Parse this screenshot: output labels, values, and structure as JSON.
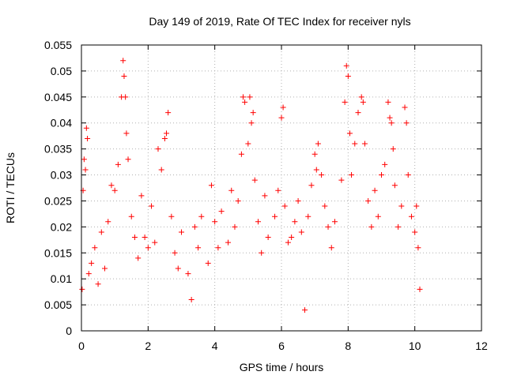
{
  "chart_data": {
    "type": "scatter",
    "title": "Day 149 of 2019, Rate Of TEC Index for receiver nyls",
    "xlabel": "GPS time / hours",
    "ylabel": "ROTI / TECUs",
    "xlim": [
      0,
      12
    ],
    "ylim": [
      0,
      0.055
    ],
    "xticks": [
      0,
      2,
      4,
      6,
      8,
      10,
      12
    ],
    "xtick_labels": [
      "0",
      "2",
      "4",
      "6",
      "8",
      "10",
      "12"
    ],
    "yticks": [
      0,
      0.005,
      0.01,
      0.015,
      0.02,
      0.025,
      0.03,
      0.035,
      0.04,
      0.045,
      0.05,
      0.055
    ],
    "ytick_labels": [
      "0",
      "0.005",
      "0.01",
      "0.015",
      "0.02",
      "0.025",
      "0.03",
      "0.035",
      "0.04",
      "0.045",
      "0.05",
      "0.055"
    ],
    "grid": true,
    "marker": "+",
    "marker_color": "#ff0000",
    "series": [
      {
        "name": "ROTI",
        "points": [
          [
            0.02,
            0.008
          ],
          [
            0.05,
            0.027
          ],
          [
            0.08,
            0.033
          ],
          [
            0.12,
            0.031
          ],
          [
            0.15,
            0.039
          ],
          [
            0.18,
            0.037
          ],
          [
            0.22,
            0.011
          ],
          [
            0.3,
            0.013
          ],
          [
            0.4,
            0.016
          ],
          [
            0.5,
            0.009
          ],
          [
            0.6,
            0.019
          ],
          [
            0.7,
            0.012
          ],
          [
            0.8,
            0.021
          ],
          [
            0.9,
            0.028
          ],
          [
            1.0,
            0.027
          ],
          [
            1.1,
            0.032
          ],
          [
            1.2,
            0.045
          ],
          [
            1.25,
            0.052
          ],
          [
            1.28,
            0.049
          ],
          [
            1.32,
            0.045
          ],
          [
            1.35,
            0.038
          ],
          [
            1.4,
            0.033
          ],
          [
            1.5,
            0.022
          ],
          [
            1.6,
            0.018
          ],
          [
            1.7,
            0.014
          ],
          [
            1.8,
            0.026
          ],
          [
            1.9,
            0.018
          ],
          [
            2.0,
            0.016
          ],
          [
            2.1,
            0.024
          ],
          [
            2.2,
            0.017
          ],
          [
            2.3,
            0.035
          ],
          [
            2.4,
            0.031
          ],
          [
            2.5,
            0.037
          ],
          [
            2.55,
            0.038
          ],
          [
            2.6,
            0.042
          ],
          [
            2.7,
            0.022
          ],
          [
            2.8,
            0.015
          ],
          [
            2.9,
            0.012
          ],
          [
            3.0,
            0.019
          ],
          [
            3.2,
            0.011
          ],
          [
            3.3,
            0.006
          ],
          [
            3.4,
            0.02
          ],
          [
            3.5,
            0.016
          ],
          [
            3.6,
            0.022
          ],
          [
            3.8,
            0.013
          ],
          [
            3.9,
            0.028
          ],
          [
            4.0,
            0.021
          ],
          [
            4.1,
            0.016
          ],
          [
            4.2,
            0.023
          ],
          [
            4.4,
            0.017
          ],
          [
            4.5,
            0.027
          ],
          [
            4.6,
            0.02
          ],
          [
            4.7,
            0.025
          ],
          [
            4.8,
            0.034
          ],
          [
            4.85,
            0.045
          ],
          [
            4.9,
            0.044
          ],
          [
            5.0,
            0.036
          ],
          [
            5.05,
            0.045
          ],
          [
            5.1,
            0.04
          ],
          [
            5.15,
            0.042
          ],
          [
            5.2,
            0.029
          ],
          [
            5.3,
            0.021
          ],
          [
            5.4,
            0.015
          ],
          [
            5.5,
            0.026
          ],
          [
            5.6,
            0.018
          ],
          [
            5.8,
            0.022
          ],
          [
            5.9,
            0.027
          ],
          [
            6.0,
            0.041
          ],
          [
            6.05,
            0.043
          ],
          [
            6.1,
            0.024
          ],
          [
            6.2,
            0.017
          ],
          [
            6.3,
            0.018
          ],
          [
            6.4,
            0.021
          ],
          [
            6.5,
            0.025
          ],
          [
            6.6,
            0.019
          ],
          [
            6.7,
            0.004
          ],
          [
            6.8,
            0.022
          ],
          [
            6.9,
            0.028
          ],
          [
            7.0,
            0.034
          ],
          [
            7.05,
            0.031
          ],
          [
            7.1,
            0.036
          ],
          [
            7.2,
            0.03
          ],
          [
            7.3,
            0.024
          ],
          [
            7.4,
            0.02
          ],
          [
            7.5,
            0.016
          ],
          [
            7.6,
            0.021
          ],
          [
            7.8,
            0.029
          ],
          [
            7.9,
            0.044
          ],
          [
            7.95,
            0.051
          ],
          [
            8.0,
            0.049
          ],
          [
            8.05,
            0.038
          ],
          [
            8.1,
            0.03
          ],
          [
            8.2,
            0.036
          ],
          [
            8.3,
            0.042
          ],
          [
            8.4,
            0.045
          ],
          [
            8.45,
            0.044
          ],
          [
            8.5,
            0.036
          ],
          [
            8.6,
            0.025
          ],
          [
            8.7,
            0.02
          ],
          [
            8.8,
            0.027
          ],
          [
            8.9,
            0.022
          ],
          [
            9.0,
            0.03
          ],
          [
            9.1,
            0.032
          ],
          [
            9.2,
            0.044
          ],
          [
            9.25,
            0.041
          ],
          [
            9.3,
            0.04
          ],
          [
            9.35,
            0.035
          ],
          [
            9.4,
            0.028
          ],
          [
            9.5,
            0.02
          ],
          [
            9.6,
            0.024
          ],
          [
            9.7,
            0.043
          ],
          [
            9.75,
            0.04
          ],
          [
            9.8,
            0.03
          ],
          [
            9.9,
            0.022
          ],
          [
            10.0,
            0.019
          ],
          [
            10.05,
            0.024
          ],
          [
            10.1,
            0.016
          ],
          [
            10.15,
            0.008
          ]
        ]
      }
    ]
  }
}
